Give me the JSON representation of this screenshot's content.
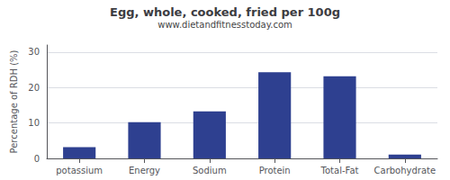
{
  "chart_data": {
    "type": "bar",
    "title": "Egg, whole, cooked, fried per 100g",
    "subtitle": "www.dietandfitnesstoday.com",
    "ylabel": "Percentage of RDH (%)",
    "categories": [
      "potassium",
      "Energy",
      "Sodium",
      "Protein",
      "Total-Fat",
      "Carbohydrate"
    ],
    "values": [
      3.2,
      10.2,
      13.3,
      24.3,
      23.2,
      1.1
    ],
    "color": "#2e4090",
    "ylim": [
      0,
      32
    ],
    "yticks": [
      0,
      10,
      20,
      30
    ],
    "grid": true
  }
}
